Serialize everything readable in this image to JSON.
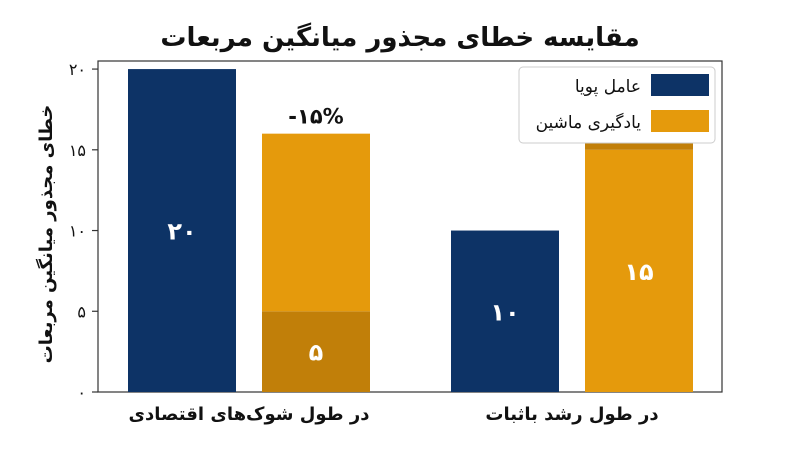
{
  "chart_data": {
    "type": "bar",
    "title": "مقایسه خطای مجذور میانگین مربعات",
    "ylabel": "خطای مجذور میانگین مربعات",
    "xlabel": "",
    "ylim": [
      0,
      20.5
    ],
    "yticks": [
      0,
      5,
      10,
      15,
      20
    ],
    "ytick_labels": [
      "۰",
      "۵",
      "۱۰",
      "۱۵",
      "۲۰"
    ],
    "categories": [
      "در طول شوک‌های اقتصادی",
      "در طول رشد باثبات"
    ],
    "series": [
      {
        "name": "عامل پویا",
        "color": "#0d3366",
        "segments": [
          [
            {
              "value": 20,
              "label": "۲۰",
              "shade": "base"
            }
          ],
          [
            {
              "value": 10,
              "label": "۱۰",
              "shade": "base"
            }
          ]
        ]
      },
      {
        "name": "یادگیری ماشین",
        "color": "#e59a0c",
        "dark_color": "#c17f09",
        "segments": [
          [
            {
              "value": 5,
              "label": "۵",
              "shade": "dark"
            },
            {
              "value": 11,
              "label": "",
              "shade": "base"
            }
          ],
          [
            {
              "value": 15,
              "label": "۱۵",
              "shade": "base"
            },
            {
              "value": 5,
              "label": "۵",
              "shade": "dark"
            }
          ]
        ]
      }
    ],
    "annotations": [
      {
        "text": "-۱۵%",
        "category_index": 0,
        "series_index": 1
      }
    ],
    "legend_position": "top-right",
    "grid": false
  }
}
